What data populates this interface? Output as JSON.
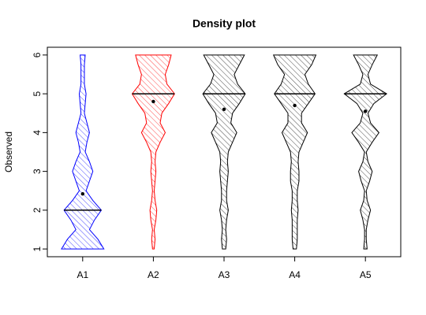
{
  "chart_data": {
    "type": "violin",
    "title": "Density plot",
    "y_label": "Observed",
    "categories": [
      "A1",
      "A2",
      "A3",
      "A4",
      "A5"
    ],
    "ylim": [
      0.8,
      6.2
    ],
    "yticks": [
      1,
      2,
      3,
      4,
      5,
      6
    ],
    "y_grid": [
      1,
      1.25,
      1.5,
      1.75,
      2,
      2.25,
      2.5,
      2.75,
      3,
      3.25,
      3.5,
      3.75,
      4,
      4.25,
      4.5,
      4.75,
      5,
      5.25,
      5.5,
      5.75,
      6
    ],
    "series": [
      {
        "color": "#0000ff",
        "median": 2,
        "mean": 2.42,
        "density": [
          25,
          18,
          8,
          14,
          22,
          12,
          4,
          8,
          12,
          8,
          3,
          5,
          8,
          5,
          2,
          3,
          4,
          2,
          2,
          2,
          3
        ]
      },
      {
        "color": "#ff0000",
        "median": 5,
        "mean": 4.8,
        "density": [
          1,
          2,
          1,
          3,
          4,
          2,
          1,
          2,
          3,
          2,
          3,
          8,
          14,
          8,
          10,
          18,
          25,
          16,
          14,
          18,
          21
        ]
      },
      {
        "color": "#000000",
        "median": 5,
        "mean": 4.6,
        "density": [
          2,
          3,
          2,
          3,
          5,
          3,
          3,
          4,
          5,
          4,
          5,
          10,
          15,
          8,
          10,
          18,
          25,
          16,
          12,
          18,
          24
        ]
      },
      {
        "color": "#000000",
        "median": 5,
        "mean": 4.7,
        "density": [
          2,
          3,
          3,
          3,
          4,
          3,
          3,
          5,
          5,
          4,
          5,
          10,
          15,
          8,
          8,
          16,
          24,
          16,
          12,
          20,
          25
        ]
      },
      {
        "color": "#000000",
        "median": 5,
        "mean": 4.55,
        "density": [
          2,
          1,
          1,
          3,
          6,
          2,
          1,
          5,
          8,
          3,
          1,
          8,
          16,
          6,
          3,
          10,
          25,
          6,
          3,
          8,
          14
        ]
      }
    ]
  }
}
